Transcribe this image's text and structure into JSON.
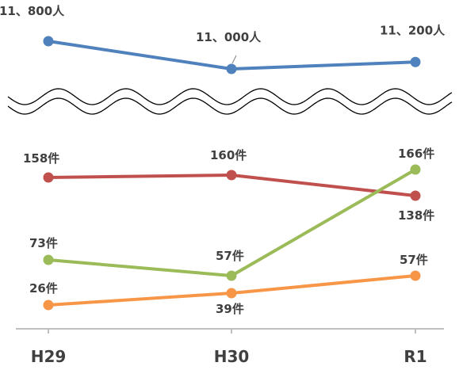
{
  "chart_data": {
    "type": "line",
    "title": "",
    "xlabel": "",
    "ylabel": "",
    "grid": false,
    "axis_break": true,
    "categories": [
      "H29",
      "H30",
      "R1"
    ],
    "series": [
      {
        "color": "#4f81bd",
        "values": [
          11800,
          11000,
          11200
        ],
        "labels": [
          "11、800人",
          "11、000人",
          "11、200人"
        ],
        "panel": "upper"
      },
      {
        "color": "#c0504d",
        "values": [
          158,
          160,
          138
        ],
        "labels": [
          "158件",
          "160件",
          "138件"
        ],
        "panel": "lower"
      },
      {
        "color": "#9bbb59",
        "values": [
          73,
          57,
          166
        ],
        "labels": [
          "73件",
          "57件",
          "166件"
        ],
        "panel": "lower"
      },
      {
        "color": "#f79646",
        "values": [
          26,
          39,
          57
        ],
        "labels": [
          "26件",
          "39件",
          "57件"
        ],
        "panel": "lower"
      }
    ]
  }
}
